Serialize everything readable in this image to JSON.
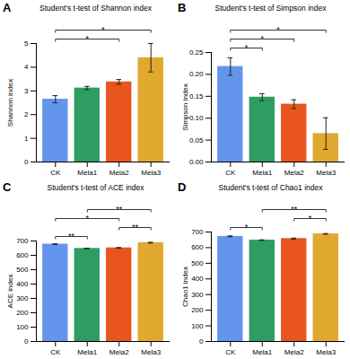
{
  "chart_data": [
    {
      "type": "bar",
      "panel": "A",
      "title": "Student's t-test of Shannon index",
      "y_label": "Shannon index",
      "categories": [
        "CK",
        "Mela1",
        "Mela2",
        "Mela3"
      ],
      "values": [
        2.65,
        3.12,
        3.38,
        4.4
      ],
      "errors": [
        0.15,
        0.07,
        0.1,
        0.6
      ],
      "colors": [
        "#6495ed",
        "#2e9c63",
        "#e8551e",
        "#e0a82e"
      ],
      "ylim": [
        0,
        5
      ],
      "yticks": [
        0,
        1,
        2,
        3,
        4,
        5
      ],
      "comparisons": [
        {
          "from": "CK",
          "to": "Mela2",
          "label": "*"
        },
        {
          "from": "CK",
          "to": "Mela3",
          "label": "*"
        }
      ]
    },
    {
      "type": "bar",
      "panel": "B",
      "title": "Student's t-test of Simpson index",
      "y_label": "Simpson index",
      "categories": [
        "CK",
        "Mela1",
        "Mela2",
        "Mela3"
      ],
      "values": [
        0.218,
        0.148,
        0.132,
        0.065
      ],
      "errors": [
        0.02,
        0.008,
        0.01,
        0.036
      ],
      "colors": [
        "#6495ed",
        "#2e9c63",
        "#e8551e",
        "#e0a82e"
      ],
      "ylim": [
        0,
        0.25
      ],
      "yticks": [
        {
          "value": 0,
          "label": "0.00"
        },
        {
          "value": 0.05,
          "label": "0.05"
        },
        {
          "value": 0.1,
          "label": "0.10"
        },
        {
          "value": 0.15,
          "label": "0.15"
        },
        {
          "value": 0.2,
          "label": "0.20"
        },
        {
          "value": 0.25,
          "label": "0.25"
        }
      ],
      "comparisons": [
        {
          "from": "CK",
          "to": "Mela1",
          "label": "*"
        },
        {
          "from": "CK",
          "to": "Mela2",
          "label": "*"
        },
        {
          "from": "CK",
          "to": "Mela3",
          "label": "*"
        }
      ]
    },
    {
      "type": "bar",
      "panel": "C",
      "title": "Student's t-test of ACE index",
      "y_label": "ACE index",
      "categories": [
        "CK",
        "Mela1",
        "Mela2",
        "Mela3"
      ],
      "values": [
        678,
        648,
        652,
        688
      ],
      "errors": [
        2,
        2,
        2,
        3
      ],
      "colors": [
        "#6495ed",
        "#2e9c63",
        "#e8551e",
        "#e0a82e"
      ],
      "ylim": [
        0,
        700
      ],
      "yticks": [
        0,
        100,
        200,
        300,
        400,
        500,
        600,
        700
      ],
      "comparisons": [
        {
          "from": "CK",
          "to": "Mela1",
          "label": "**"
        },
        {
          "from": "Mela2",
          "to": "Mela3",
          "label": "**"
        },
        {
          "from": "CK",
          "to": "Mela2",
          "label": "*"
        },
        {
          "from": "Mela1",
          "to": "Mela3",
          "label": "**"
        }
      ]
    },
    {
      "type": "bar",
      "panel": "D",
      "title": "Student's t-test of Chao1 index",
      "y_label": "Chao1 index",
      "categories": [
        "CK",
        "Mela1",
        "Mela2",
        "Mela3"
      ],
      "values": [
        672,
        648,
        658,
        688
      ],
      "errors": [
        3,
        2,
        3,
        2
      ],
      "colors": [
        "#6495ed",
        "#2e9c63",
        "#e8551e",
        "#e0a82e"
      ],
      "ylim": [
        0,
        700
      ],
      "yticks": [
        0,
        100,
        200,
        300,
        400,
        500,
        600,
        700
      ],
      "comparisons": [
        {
          "from": "CK",
          "to": "Mela1",
          "label": "*"
        },
        {
          "from": "Mela2",
          "to": "Mela3",
          "label": "*"
        },
        {
          "from": "Mela1",
          "to": "Mela3",
          "label": "**"
        }
      ]
    }
  ]
}
